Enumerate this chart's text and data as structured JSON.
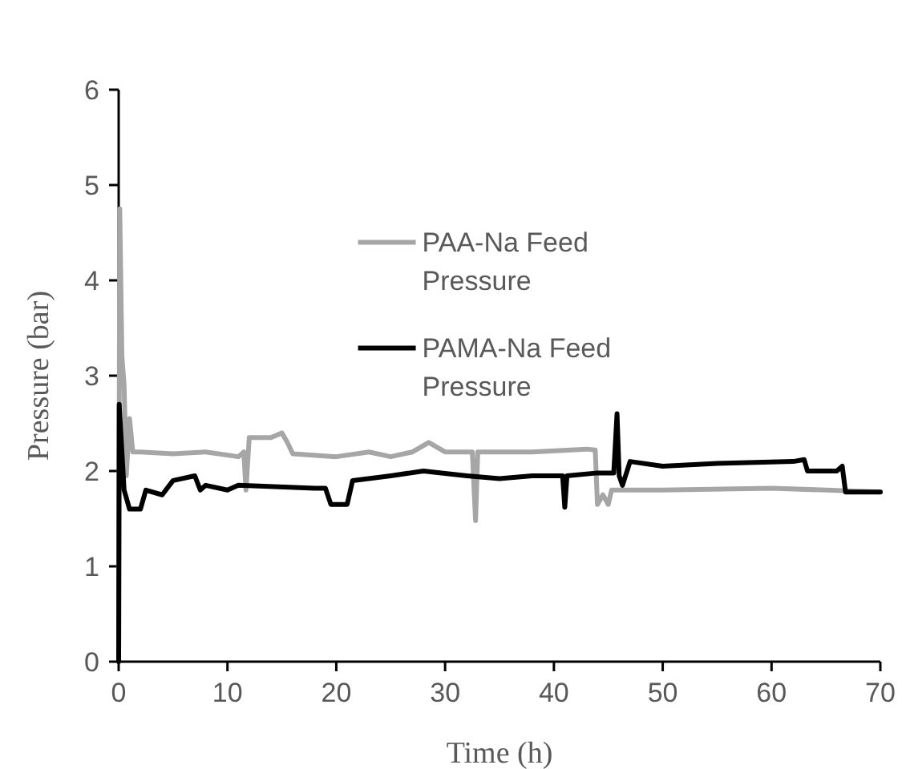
{
  "chart_data": {
    "type": "line",
    "xlabel": "Time (h)",
    "ylabel": "Pressure (bar)",
    "xlim": [
      0,
      70
    ],
    "xticks": [
      0,
      10,
      20,
      30,
      40,
      50,
      60,
      70
    ],
    "ylim": [
      0,
      6
    ],
    "yticks": [
      0,
      1,
      2,
      3,
      4,
      5,
      6
    ],
    "grid": false,
    "legend": "top",
    "marker": "none",
    "line_style": "solid",
    "series": [
      {
        "name": "PAA-Na Feed Pressure",
        "color": "#a6a6a6",
        "x": [
          0,
          0.1,
          0.3,
          0.5,
          0.7,
          1,
          1.3,
          2,
          5,
          8,
          11,
          11.5,
          11.7,
          12,
          14,
          15,
          15.5,
          16,
          20,
          23,
          25,
          27,
          28.5,
          30,
          32.5,
          32.8,
          33,
          38,
          43,
          43.8,
          44,
          44.5,
          45,
          45.3,
          50,
          60,
          65,
          70
        ],
        "values": [
          0,
          4.75,
          3.2,
          2.9,
          1.95,
          2.55,
          2.2,
          2.2,
          2.18,
          2.2,
          2.15,
          2.2,
          1.8,
          2.35,
          2.35,
          2.4,
          2.3,
          2.18,
          2.15,
          2.2,
          2.15,
          2.2,
          2.3,
          2.2,
          2.2,
          1.48,
          2.2,
          2.2,
          2.23,
          2.22,
          1.65,
          1.75,
          1.65,
          1.8,
          1.8,
          1.82,
          1.8,
          1.78
        ]
      },
      {
        "name": "PAMA-Na Feed Pressure",
        "color": "#000000",
        "x": [
          0,
          0.05,
          0.3,
          0.5,
          1,
          2,
          2.5,
          4,
          5,
          7,
          7.5,
          8,
          10,
          11,
          18,
          19,
          19.5,
          21,
          21.5,
          25,
          28,
          32,
          35,
          38,
          40.8,
          41,
          41.2,
          44,
          45.5,
          45.8,
          46,
          46.3,
          47,
          50,
          55,
          62,
          63,
          63.3,
          66,
          66.5,
          66.8,
          70
        ],
        "values": [
          0,
          2.7,
          2.2,
          1.8,
          1.6,
          1.6,
          1.8,
          1.75,
          1.9,
          1.95,
          1.8,
          1.85,
          1.8,
          1.85,
          1.82,
          1.82,
          1.65,
          1.65,
          1.9,
          1.95,
          2.0,
          1.95,
          1.92,
          1.95,
          1.95,
          1.62,
          1.95,
          1.98,
          1.98,
          2.6,
          1.95,
          1.85,
          2.1,
          2.05,
          2.08,
          2.1,
          2.12,
          2.0,
          2.0,
          2.05,
          1.78,
          1.78
        ]
      }
    ]
  }
}
